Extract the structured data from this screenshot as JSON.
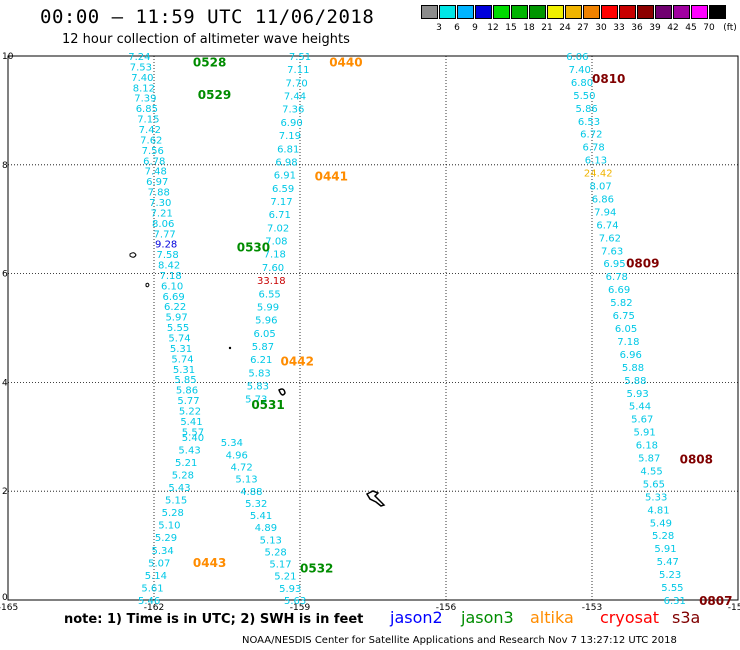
{
  "title": "00:00 – 11:59 UTC 11/06/2018",
  "subtitle": "12 hour collection of altimeter wave heights",
  "note": "note: 1) Time is in UTC; 2) SWH is in feet",
  "credit": "NOAA/NESDIS Center for Satellite Applications and Research   Nov  7 13:27:12 UTC 2018",
  "legend": {
    "unit": "(ft)",
    "swatches": [
      "#8c8c8c",
      "#00e6e6",
      "#00b4ff",
      "#0000dc",
      "#00dc00",
      "#00b400",
      "#009600",
      "#f0f000",
      "#f0b400",
      "#f08200",
      "#ff0000",
      "#c80000",
      "#8c0000",
      "#700070",
      "#a000a0",
      "#ff00ff",
      "#000000"
    ],
    "labels": [
      "3",
      "6",
      "9",
      "12",
      "15",
      "18",
      "21",
      "24",
      "27",
      "30",
      "33",
      "36",
      "39",
      "42",
      "45",
      "70"
    ]
  },
  "satellites": [
    {
      "name": "jason2",
      "color": "#0000ff"
    },
    {
      "name": "jason3",
      "color": "#008c00"
    },
    {
      "name": "altika",
      "color": "#ff8c00"
    },
    {
      "name": "cryosat",
      "color": "#ff0000"
    },
    {
      "name": "s3a",
      "color": "#800000"
    }
  ],
  "chart_data": {
    "type": "scatter",
    "xlim": [
      -165,
      -150
    ],
    "ylim": [
      0,
      10
    ],
    "x_ticks": [
      "-165",
      "-162",
      "-159",
      "-156",
      "-153",
      "-150"
    ],
    "y_ticks": [
      "0",
      "2",
      "4",
      "6",
      "8",
      "10"
    ],
    "grid": true,
    "tracks": [
      {
        "satellite": "jason3",
        "color": "#00c8e6",
        "x_start": -162.3,
        "y_start": 10.0,
        "x_end": -161.2,
        "y_end": 3.1,
        "values": [
          "7.24",
          "7.53",
          "7.40",
          "8.12",
          "7.39",
          "6.85",
          "7.15",
          "7.42",
          "7.62",
          "7.56",
          "6.78",
          "7.48",
          "6.97",
          "7.88",
          "7.30",
          "7.21",
          "8.06",
          "7.77",
          "9.28",
          "7.58",
          "8.42",
          "7.18",
          "6.10",
          "6.69",
          "6.22",
          "5.97",
          "5.55",
          "5.74",
          "5.31",
          "5.74",
          "5.31",
          "5.85",
          "5.86",
          "5.77",
          "5.22",
          "5.41",
          "5.57"
        ]
      },
      {
        "satellite": "altika",
        "color": "#00c8e6",
        "x_start": -159.0,
        "y_start": 10.0,
        "x_end": -159.9,
        "y_end": 3.7,
        "values": [
          "7.51",
          "7.11",
          "7.70",
          "7.44",
          "7.36",
          "6.90",
          "7.19",
          "6.81",
          "6.98",
          "6.91",
          "6.59",
          "7.17",
          "6.71",
          "7.02",
          "7.08",
          "7.18",
          "7.60",
          "33.18",
          "6.55",
          "5.99",
          "5.96",
          "6.05",
          "5.87",
          "6.21",
          "5.83",
          "5.83",
          "5.73"
        ]
      },
      {
        "satellite": "jason3",
        "color": "#00c8e6",
        "x_start": -161.2,
        "y_start": 3.0,
        "x_end": -162.1,
        "y_end": 0.0,
        "values": [
          "5.40",
          "5.43",
          "5.21",
          "5.28",
          "5.43",
          "5.15",
          "5.28",
          "5.10",
          "5.29",
          "5.34",
          "5.07",
          "5.14",
          "5.61",
          "5.46"
        ]
      },
      {
        "satellite": "altika",
        "color": "#00c8e6",
        "x_start": -160.4,
        "y_start": 2.9,
        "x_end": -159.1,
        "y_end": 0.0,
        "values": [
          "5.34",
          "4.96",
          "4.72",
          "5.13",
          "4.88",
          "5.32",
          "5.41",
          "4.89",
          "5.13",
          "5.28",
          "5.17",
          "5.21",
          "5.93",
          "5.63"
        ]
      },
      {
        "satellite": "s3a",
        "color": "#00c8e6",
        "x_start": -153.3,
        "y_start": 10.0,
        "x_end": -151.3,
        "y_end": 0.0,
        "values": [
          "6.06",
          "7.40",
          "6.80",
          "5.50",
          "5.86",
          "6.53",
          "6.72",
          "6.78",
          "6.13",
          "24.42",
          "8.07",
          "6.86",
          "7.94",
          "6.74",
          "7.62",
          "7.63",
          "6.95",
          "6.78",
          "6.69",
          "5.82",
          "6.75",
          "6.05",
          "7.18",
          "6.96",
          "5.88",
          "5.88",
          "5.93",
          "5.44",
          "5.67",
          "5.91",
          "6.18",
          "5.87",
          "4.55",
          "5.65",
          "5.33",
          "4.81",
          "5.49",
          "5.28",
          "5.91",
          "5.47",
          "5.23",
          "5.55",
          "6.31"
        ]
      }
    ],
    "annotations": [
      {
        "label": "0528",
        "x": -161.2,
        "y": 9.9,
        "color": "#008c00"
      },
      {
        "label": "0529",
        "x": -161.1,
        "y": 9.3,
        "color": "#008c00"
      },
      {
        "label": "0530",
        "x": -160.3,
        "y": 6.5,
        "color": "#008c00"
      },
      {
        "label": "0531",
        "x": -160.0,
        "y": 3.6,
        "color": "#008c00"
      },
      {
        "label": "0532",
        "x": -159.0,
        "y": 0.6,
        "color": "#008c00"
      },
      {
        "label": "0440",
        "x": -158.4,
        "y": 9.9,
        "color": "#ff8c00"
      },
      {
        "label": "0441",
        "x": -158.7,
        "y": 7.8,
        "color": "#ff8c00"
      },
      {
        "label": "0442",
        "x": -159.4,
        "y": 4.4,
        "color": "#ff8c00"
      },
      {
        "label": "0443",
        "x": -161.2,
        "y": 0.7,
        "color": "#ff8c00"
      },
      {
        "label": "0810",
        "x": -153.0,
        "y": 9.6,
        "color": "#800000"
      },
      {
        "label": "0809",
        "x": -152.3,
        "y": 6.2,
        "color": "#800000"
      },
      {
        "label": "0808",
        "x": -151.2,
        "y": 2.6,
        "color": "#800000"
      },
      {
        "label": "0807",
        "x": -150.8,
        "y": 0.0,
        "color": "#800000"
      }
    ]
  }
}
